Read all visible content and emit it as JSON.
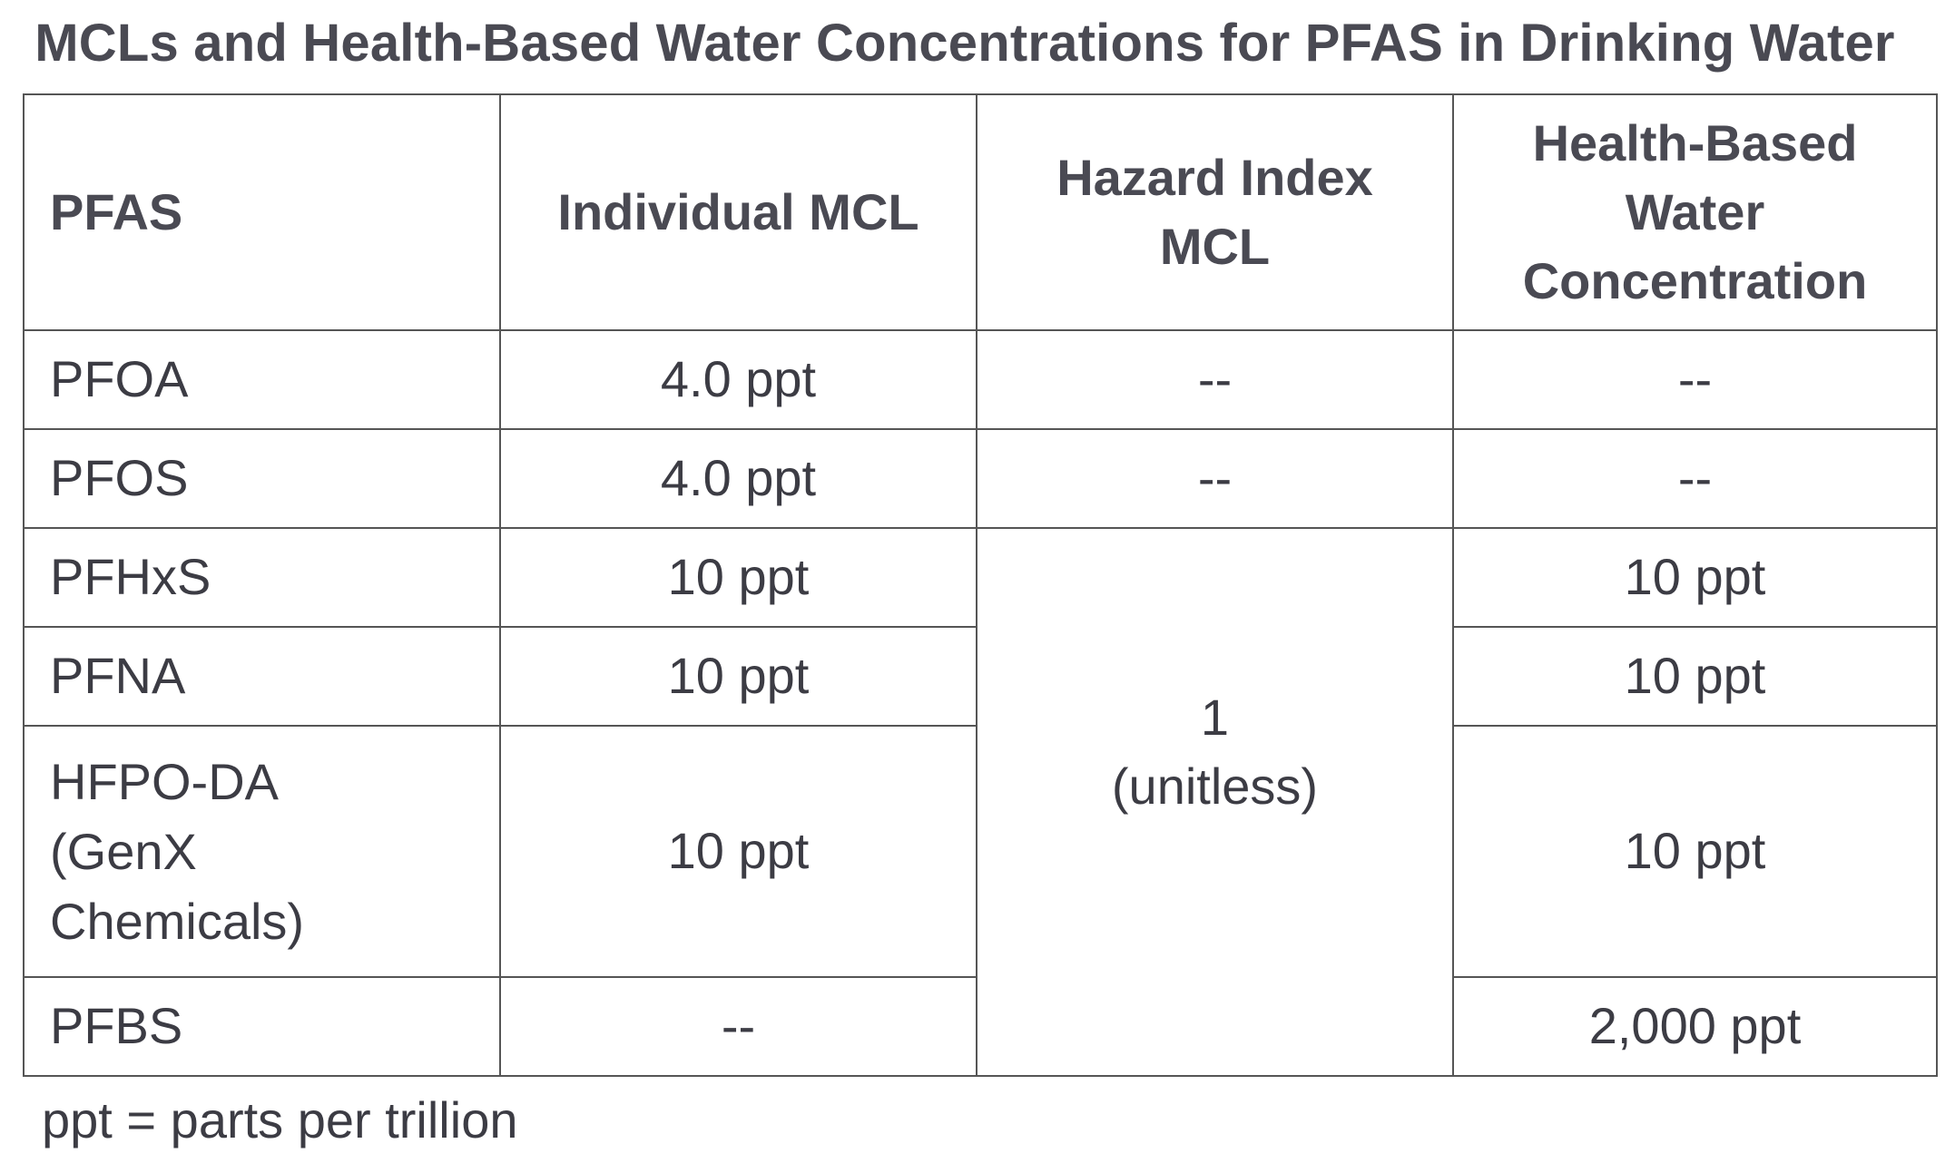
{
  "title": "MCLs and Health-Based Water Concentrations for PFAS in Drinking Water",
  "table": {
    "headers": {
      "pfas": "PFAS",
      "individual_mcl": "Individual MCL",
      "hazard_index_mcl": "Hazard Index MCL",
      "health_based": "Health-Based Water Concentration"
    },
    "rows": [
      {
        "pfas": "PFOA",
        "individual_mcl": "4.0 ppt",
        "hazard_index": "--",
        "health_based": "--"
      },
      {
        "pfas": "PFOS",
        "individual_mcl": "4.0 ppt",
        "hazard_index": "--",
        "health_based": "--"
      },
      {
        "pfas": "PFHxS",
        "individual_mcl": "10 ppt",
        "health_based": "10 ppt"
      },
      {
        "pfas": "PFNA",
        "individual_mcl": "10 ppt",
        "health_based": "10 ppt"
      },
      {
        "pfas": "HFPO-DA (GenX Chemicals)",
        "individual_mcl": "10 ppt",
        "health_based": "10 ppt"
      },
      {
        "pfas": "PFBS",
        "individual_mcl": "--",
        "health_based": "2,000 ppt"
      }
    ],
    "hazard_index_group": {
      "value": "1",
      "unit": "(unitless)"
    }
  },
  "footnote": "ppt = parts per trillion"
}
